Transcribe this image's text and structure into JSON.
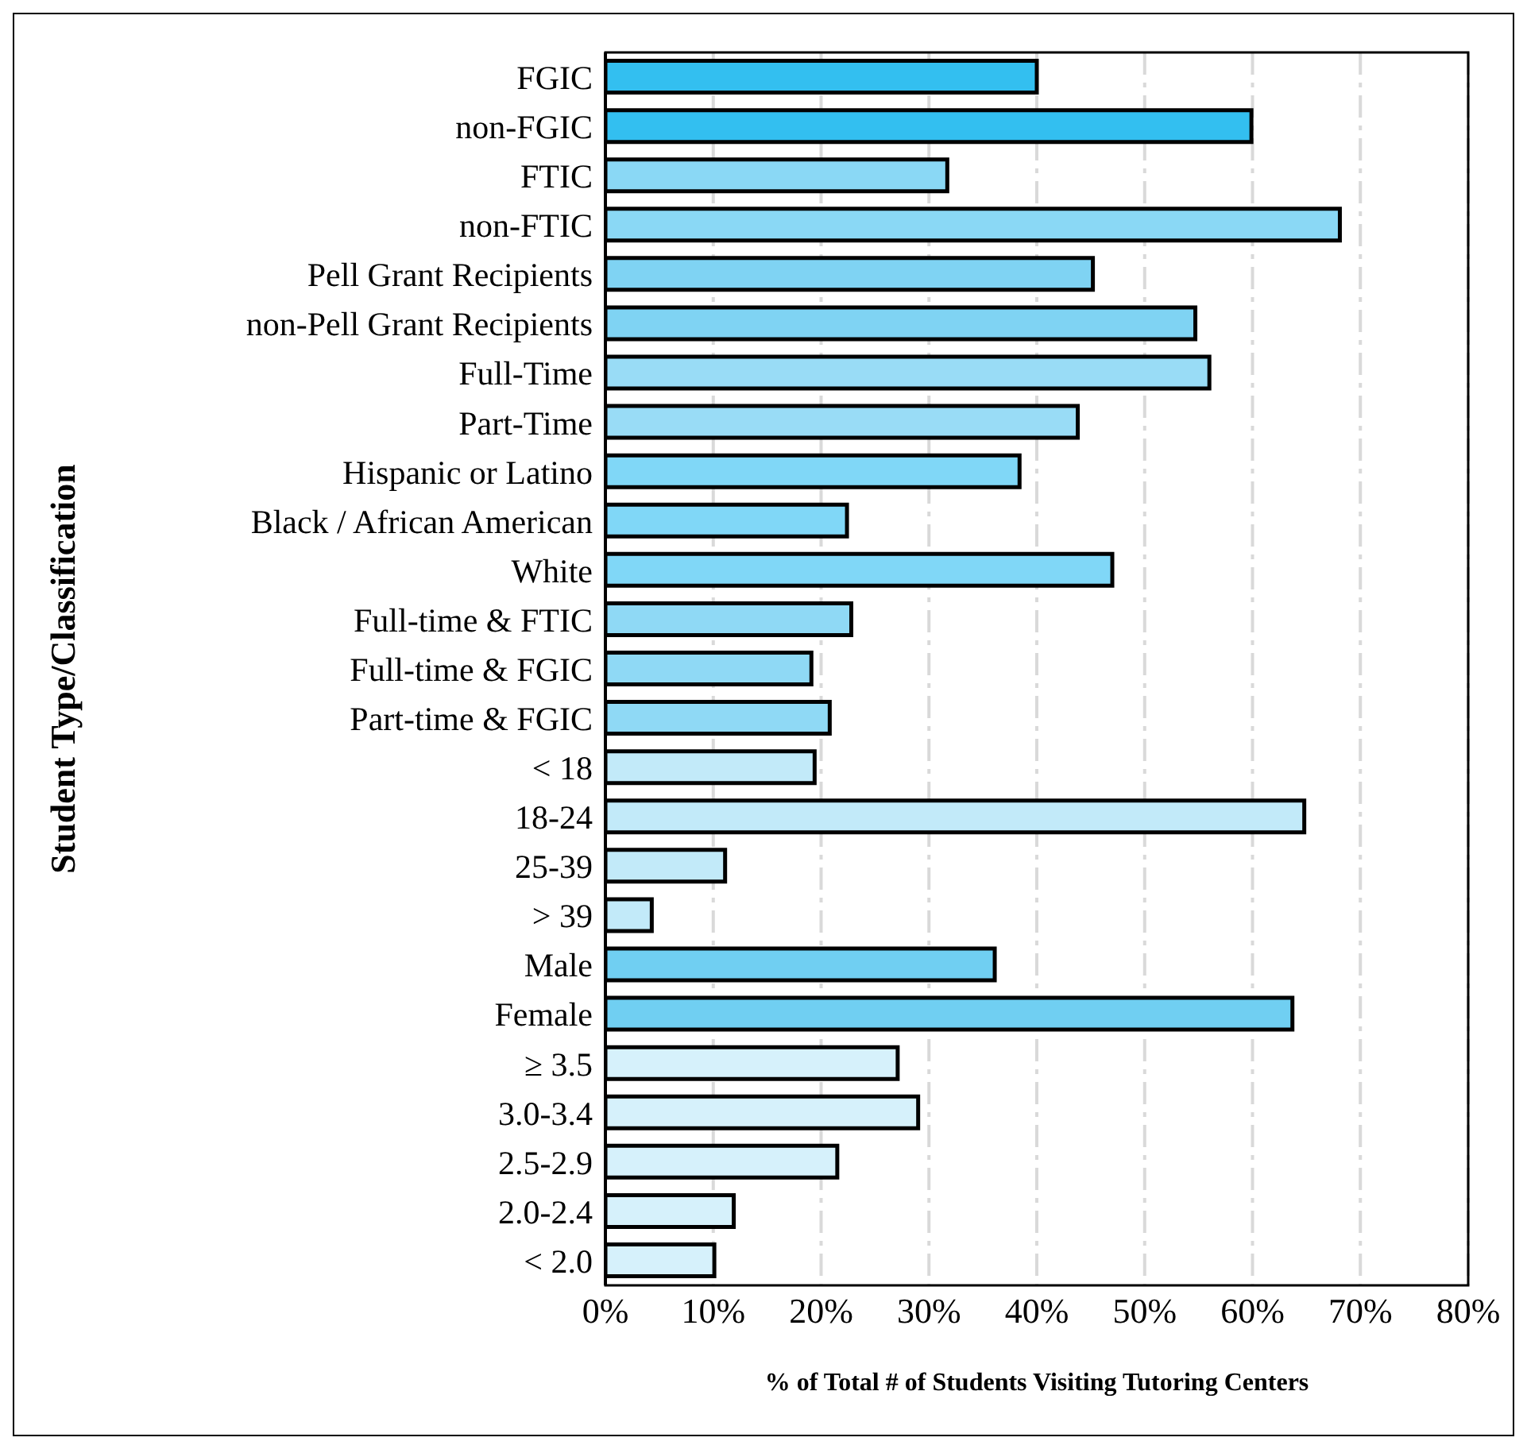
{
  "chart_data": {
    "type": "bar",
    "orientation": "horizontal",
    "ylabel": "Student Type/Classification",
    "xlabel": "% of Total # of Students Visiting Tutoring Centers",
    "categories": [
      "FGIC",
      "non-FGIC",
      "FTIC",
      "non-FTIC",
      "Pell Grant Recipients",
      "non-Pell Grant Recipients",
      "Full-Time",
      "Part-Time",
      "Hispanic or Latino",
      "Black / African American",
      "White",
      "Full-time & FTIC",
      "Full-time & FGIC",
      "Part-time & FGIC",
      "< 18",
      "18-24",
      "25-39",
      "> 39",
      "Male",
      "Female",
      "≥ 3.5",
      "3.0-3.4",
      "2.5-2.9",
      "2.0-2.4",
      "< 2.0"
    ],
    "values": [
      40.0,
      59.9,
      31.7,
      68.1,
      45.2,
      54.7,
      56.0,
      43.8,
      38.4,
      22.4,
      47.0,
      22.8,
      19.1,
      20.8,
      19.4,
      64.8,
      11.1,
      4.3,
      36.1,
      63.7,
      27.1,
      29.0,
      21.5,
      11.9,
      10.1
    ],
    "colors": [
      "#33bff0",
      "#33bff0",
      "#8ad8f5",
      "#8ad8f5",
      "#7fd3f3",
      "#7fd3f3",
      "#99dcf6",
      "#99dcf6",
      "#80d7f7",
      "#80d7f7",
      "#80d7f7",
      "#8fd9f5",
      "#8fd9f5",
      "#8fd9f5",
      "#c2eaf9",
      "#c2eaf9",
      "#c2eaf9",
      "#c2eaf9",
      "#70cff2",
      "#70cff2",
      "#d6f1fb",
      "#d6f1fb",
      "#d6f1fb",
      "#d6f1fb",
      "#d6f1fb"
    ],
    "xlim": [
      0,
      80
    ],
    "xticks": [
      {
        "value": 0,
        "label": "0%"
      },
      {
        "value": 10,
        "label": "10%"
      },
      {
        "value": 20,
        "label": "20%"
      },
      {
        "value": 30,
        "label": "30%"
      },
      {
        "value": 40,
        "label": "40%"
      },
      {
        "value": 50,
        "label": "50%"
      },
      {
        "value": 60,
        "label": "60%"
      },
      {
        "value": 70,
        "label": "70%"
      },
      {
        "value": 80,
        "label": "80%"
      }
    ],
    "grid": "x"
  }
}
